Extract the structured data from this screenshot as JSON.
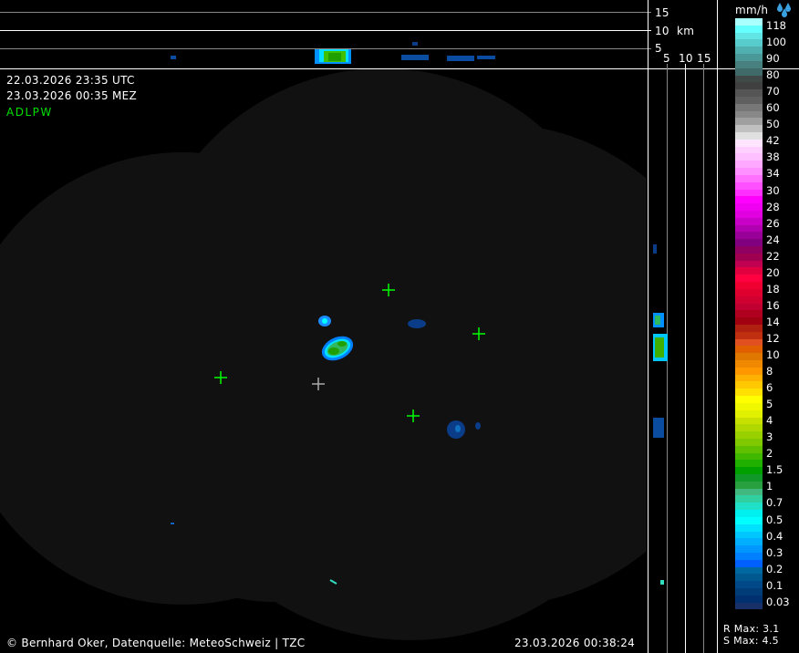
{
  "header": {
    "utc_time": "22.03.2026 23:35 UTC",
    "local_time": "23.03.2026 00:35 MEZ",
    "product_code": "ADLPW"
  },
  "vertical_profile": {
    "height_unit": "km",
    "height_labels": [
      "15",
      "10",
      "5"
    ],
    "side_labels": [
      "5",
      "10",
      "15"
    ]
  },
  "map": {
    "coverage_color": "#111111",
    "marker_color_radar": "#00ff00",
    "marker_color_center": "#aaaaaa"
  },
  "legend": {
    "unit": "mm/h",
    "icon": "raindrops-icon",
    "labels": [
      "118",
      "100",
      "90",
      "80",
      "70",
      "60",
      "50",
      "42",
      "38",
      "34",
      "30",
      "28",
      "26",
      "24",
      "22",
      "20",
      "18",
      "16",
      "14",
      "12",
      "10",
      "8",
      "6",
      "5",
      "4",
      "3",
      "2",
      "1.5",
      "1",
      "0.7",
      "0.5",
      "0.4",
      "0.3",
      "0.2",
      "0.1",
      "0.03"
    ],
    "colors": [
      "#aaffff",
      "#66ffff",
      "#60e4e4",
      "#58cccc",
      "#50b0b0",
      "#4a9898",
      "#488080",
      "#406a6a",
      "#404848",
      "#404040",
      "#555555",
      "#606060",
      "#777777",
      "#888888",
      "#a0a0a0",
      "#c0c0c0",
      "#e0e0e0",
      "#ffe4ff",
      "#ffd0ff",
      "#ffc0ff",
      "#ffa8ff",
      "#ff90ff",
      "#ff70ff",
      "#ff50ff",
      "#ff30ff",
      "#ff00ff",
      "#f000f0",
      "#e000e0",
      "#c800c8",
      "#b000b0",
      "#980098",
      "#800080",
      "#900060",
      "#a00050",
      "#c00050",
      "#e00040",
      "#ff0040",
      "#f00030",
      "#e00030",
      "#d00030",
      "#c00030",
      "#b00020",
      "#a00010",
      "#b02010",
      "#c03010",
      "#e05020",
      "#e06000",
      "#e07800",
      "#f08800",
      "#ff9800",
      "#ffb000",
      "#ffc800",
      "#ffe000",
      "#ffff00",
      "#f0f800",
      "#e0f000",
      "#c8e000",
      "#b0d800",
      "#98d000",
      "#80c800",
      "#60c000",
      "#40b800",
      "#20b000",
      "#00a000",
      "#109828",
      "#28a040",
      "#40b880",
      "#30d0a0",
      "#20e0c8",
      "#00f0f0",
      "#00ffff",
      "#00e0ff",
      "#00c8ff",
      "#00b0ff",
      "#0098ff",
      "#0080ff",
      "#0060ff",
      "#0068a0",
      "#005890",
      "#004888",
      "#003c78",
      "#003070",
      "#183068"
    ],
    "r_max": "R Max: 3.1",
    "s_max": "S Max: 4.5"
  },
  "footer": {
    "copyright": "© Bernhard Oker, Datenquelle: MeteoSchweiz | TZC",
    "generated": "23.03.2026 00:38:24"
  }
}
